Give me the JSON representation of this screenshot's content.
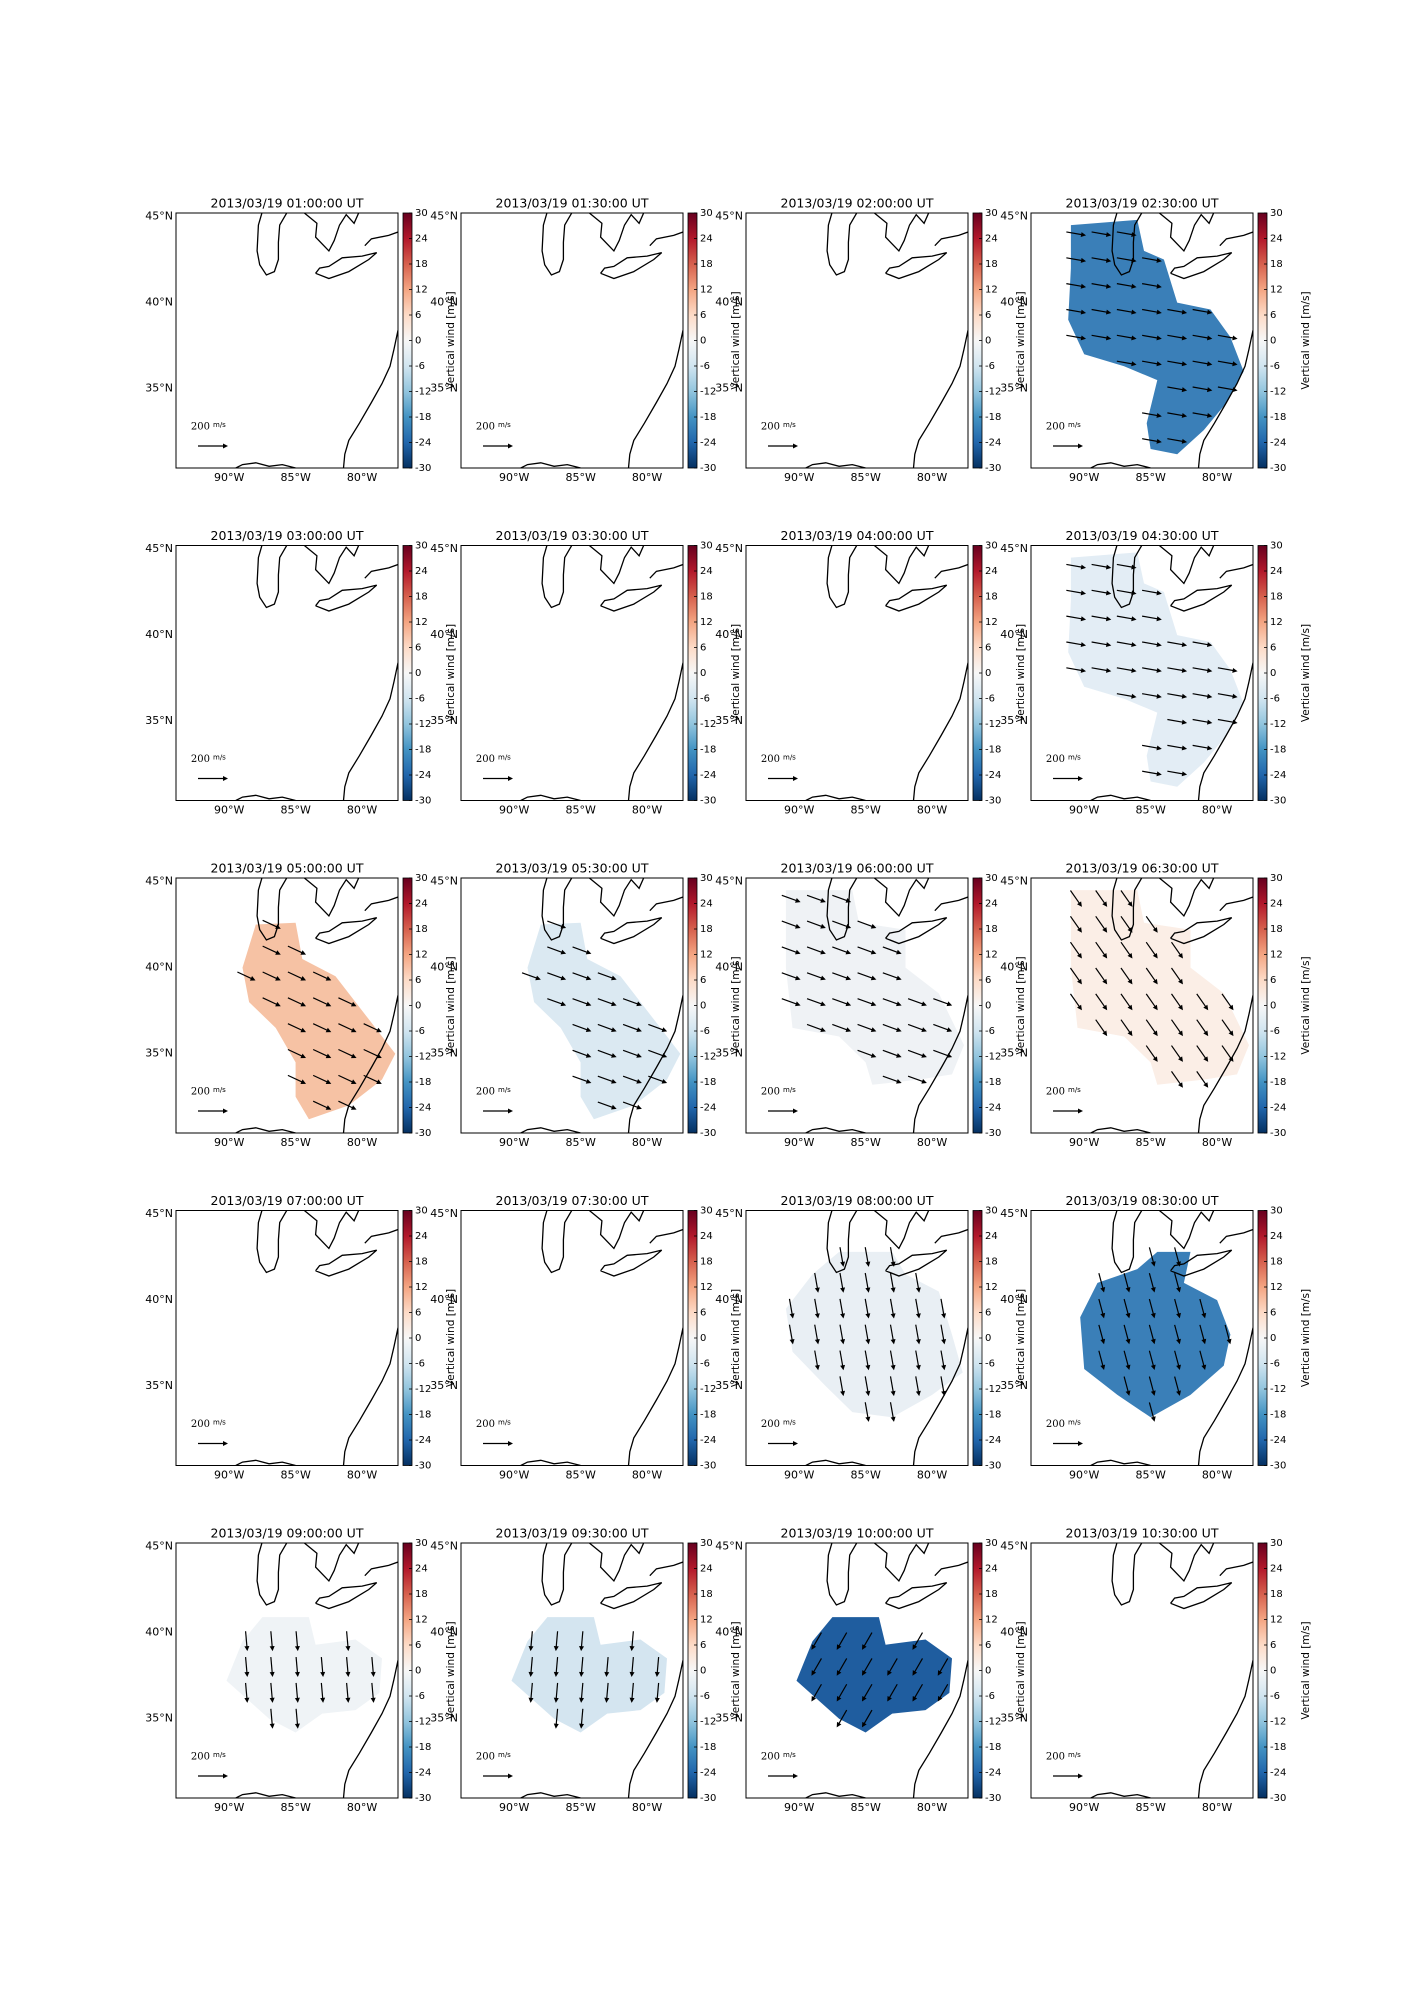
{
  "chart_data": [
    {
      "type": "map",
      "title": "2013/03/19 01:00:00 UT",
      "vertical_wind": null,
      "color": null,
      "arrow_angle": null
    },
    {
      "type": "map",
      "title": "2013/03/19 01:30:00 UT",
      "vertical_wind": null,
      "color": null,
      "arrow_angle": null
    },
    {
      "type": "map",
      "title": "2013/03/19 02:00:00 UT",
      "vertical_wind": null,
      "color": null,
      "arrow_angle": null
    },
    {
      "type": "map",
      "title": "2013/03/19 02:30:00 UT",
      "vertical_wind": -18,
      "color": "#3a7fb8",
      "arrow_angle": 10
    },
    {
      "type": "map",
      "title": "2013/03/19 03:00:00 UT",
      "vertical_wind": null,
      "color": null,
      "arrow_angle": null
    },
    {
      "type": "map",
      "title": "2013/03/19 03:30:00 UT",
      "vertical_wind": null,
      "color": null,
      "arrow_angle": null
    },
    {
      "type": "map",
      "title": "2013/03/19 04:00:00 UT",
      "vertical_wind": null,
      "color": null,
      "arrow_angle": null
    },
    {
      "type": "map",
      "title": "2013/03/19 04:30:00 UT",
      "vertical_wind": -3,
      "color": "#e3edf5",
      "arrow_angle": 10
    },
    {
      "type": "map",
      "title": "2013/03/19 05:00:00 UT",
      "vertical_wind": 9,
      "color": "#f6c2a4",
      "arrow_angle": 25
    },
    {
      "type": "map",
      "title": "2013/03/19 05:30:00 UT",
      "vertical_wind": -5,
      "color": "#dbe9f2",
      "arrow_angle": 20
    },
    {
      "type": "map",
      "title": "2013/03/19 06:00:00 UT",
      "vertical_wind": -1,
      "color": "#eff2f5",
      "arrow_angle": 20
    },
    {
      "type": "map",
      "title": "2013/03/19 06:30:00 UT",
      "vertical_wind": 2,
      "color": "#fbeee6",
      "arrow_angle": 55
    },
    {
      "type": "map",
      "title": "2013/03/19 07:00:00 UT",
      "vertical_wind": null,
      "color": null,
      "arrow_angle": null
    },
    {
      "type": "map",
      "title": "2013/03/19 07:30:00 UT",
      "vertical_wind": null,
      "color": null,
      "arrow_angle": null
    },
    {
      "type": "map",
      "title": "2013/03/19 08:00:00 UT",
      "vertical_wind": -2,
      "color": "#e9eff4",
      "arrow_angle": 80
    },
    {
      "type": "map",
      "title": "2013/03/19 08:30:00 UT",
      "vertical_wind": -18,
      "color": "#3a7fb8",
      "arrow_angle": 75
    },
    {
      "type": "map",
      "title": "2013/03/19 09:00:00 UT",
      "vertical_wind": -1,
      "color": "#eff3f6",
      "arrow_angle": 85
    },
    {
      "type": "map",
      "title": "2013/03/19 09:30:00 UT",
      "vertical_wind": -6,
      "color": "#d4e5f0",
      "arrow_angle": 95
    },
    {
      "type": "map",
      "title": "2013/03/19 10:00:00 UT",
      "vertical_wind": -24,
      "color": "#1f5d9f",
      "arrow_angle": 120
    },
    {
      "type": "map",
      "title": "2013/03/19 10:30:00 UT",
      "vertical_wind": null,
      "color": null,
      "arrow_angle": null
    }
  ],
  "axes": {
    "xlim": [
      -94,
      -77.3
    ],
    "ylim": [
      30.4,
      45.2
    ],
    "xticks": [
      {
        "value": -90,
        "label": "90°W"
      },
      {
        "value": -85,
        "label": "85°W"
      },
      {
        "value": -80,
        "label": "80°W"
      }
    ],
    "yticks": [
      {
        "value": 45,
        "label": "45°N"
      },
      {
        "value": 40,
        "label": "40°N"
      },
      {
        "value": 35,
        "label": "35°N"
      }
    ]
  },
  "colorbar": {
    "label": "Vertical wind [m/s]",
    "clim": [
      -30,
      30
    ],
    "ticks": [
      30,
      24,
      18,
      12,
      6,
      0,
      -6,
      -12,
      -18,
      -24,
      -30
    ]
  },
  "quiver_key": {
    "speed": "200",
    "unit": "m/s"
  }
}
